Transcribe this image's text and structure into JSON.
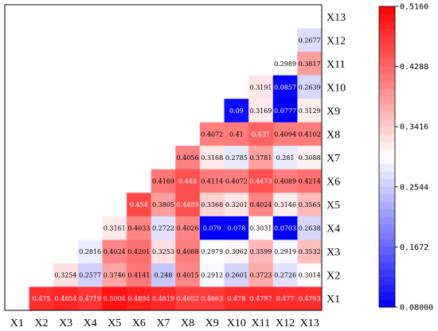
{
  "chart_data": {
    "type": "heatmap",
    "title": "",
    "x_labels": [
      "X1",
      "X2",
      "X3",
      "X4",
      "X5",
      "X6",
      "X7",
      "X8",
      "X9",
      "X10",
      "X11",
      "X12",
      "X13"
    ],
    "y_labels": [
      "X13",
      "X12",
      "X11",
      "X10",
      "X9",
      "X8",
      "X7",
      "X6",
      "X5",
      "X4",
      "X3",
      "X2",
      "X1"
    ],
    "rows": [
      {
        "label": "X13",
        "values": []
      },
      {
        "label": "X12",
        "values": [
          null,
          null,
          null,
          null,
          null,
          null,
          null,
          null,
          null,
          null,
          null,
          null,
          0.2677
        ]
      },
      {
        "label": "X11",
        "values": [
          null,
          null,
          null,
          null,
          null,
          null,
          null,
          null,
          null,
          null,
          null,
          0.2989,
          0.3817
        ]
      },
      {
        "label": "X10",
        "values": [
          null,
          null,
          null,
          null,
          null,
          null,
          null,
          null,
          null,
          null,
          0.3191,
          0.0857,
          0.2639
        ]
      },
      {
        "label": "X9",
        "values": [
          null,
          null,
          null,
          null,
          null,
          null,
          null,
          null,
          null,
          0.09,
          0.3169,
          0.0777,
          0.3129
        ]
      },
      {
        "label": "X8",
        "values": [
          null,
          null,
          null,
          null,
          null,
          null,
          null,
          null,
          0.4072,
          0.41,
          0.431,
          0.4094,
          0.4102
        ]
      },
      {
        "label": "X7",
        "values": [
          null,
          null,
          null,
          null,
          null,
          null,
          null,
          0.4056,
          0.3168,
          0.2785,
          0.3781,
          0.281,
          0.3088
        ]
      },
      {
        "label": "X6",
        "values": [
          null,
          null,
          null,
          null,
          null,
          null,
          0.4169,
          0.448,
          0.4114,
          0.4072,
          0.4473,
          0.4089,
          0.4214
        ]
      },
      {
        "label": "X5",
        "values": [
          null,
          null,
          null,
          null,
          null,
          0.454,
          0.3805,
          0.4485,
          0.3368,
          0.3201,
          0.4024,
          0.3146,
          0.3565
        ]
      },
      {
        "label": "X4",
        "values": [
          null,
          null,
          null,
          null,
          0.3161,
          0.4033,
          0.2722,
          0.4026,
          0.079,
          0.078,
          0.3031,
          0.0703,
          0.2638
        ]
      },
      {
        "label": "X3",
        "values": [
          null,
          null,
          null,
          0.2816,
          0.4024,
          0.4201,
          0.3253,
          0.4088,
          0.2979,
          0.3062,
          0.3599,
          0.2919,
          0.3532
        ]
      },
      {
        "label": "X2",
        "values": [
          null,
          null,
          0.3254,
          0.2577,
          0.3746,
          0.4141,
          0.248,
          0.4015,
          0.2912,
          0.2601,
          0.3723,
          0.2726,
          0.3014
        ]
      },
      {
        "label": "X1",
        "values": [
          null,
          0.475,
          0.4854,
          0.4719,
          0.5004,
          0.4894,
          0.4819,
          0.4652,
          0.4663,
          0.478,
          0.4797,
          0.477,
          0.4763
        ]
      }
    ],
    "colorbar": {
      "min": 0.08,
      "max": 0.516,
      "ticks": [
        "0.08000",
        "0.1672",
        "0.2544",
        "0.3416",
        "0.4288",
        "0.5160"
      ],
      "colors": {
        "low": "#0000ff",
        "mid": "#ffffff",
        "high": "#ff0000"
      }
    },
    "grid": false
  }
}
